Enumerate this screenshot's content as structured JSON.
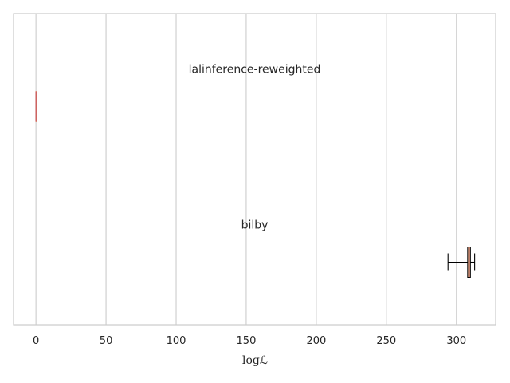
{
  "chart_data": {
    "type": "boxplot",
    "orientation": "horizontal",
    "xlabel": "logℒ",
    "xlim": [
      -16,
      328
    ],
    "xticks": [
      0,
      50,
      100,
      150,
      200,
      250,
      300
    ],
    "grid": true,
    "box_color": "#e8a787",
    "median_color": "#c44e52",
    "series": [
      {
        "name": "lalinference-reweighted",
        "whisker_low": 0,
        "q1": 0,
        "median": 0,
        "q3": 0,
        "whisker_high": 0
      },
      {
        "name": "bilby",
        "whisker_low": 294,
        "q1": 308,
        "median": 309,
        "q3": 310,
        "whisker_high": 313
      }
    ]
  }
}
